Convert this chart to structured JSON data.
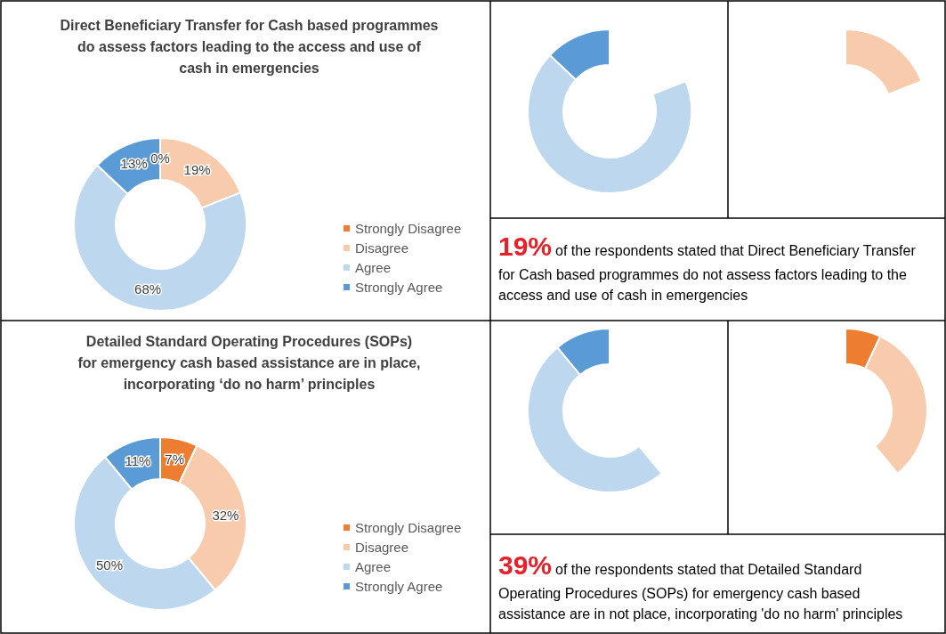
{
  "chart_data": [
    {
      "type": "donut",
      "title": "Direct Beneficiary Transfer for Cash based programmes\ndo assess factors leading to the access and use of\ncash in emergencies",
      "categories": [
        "Strongly Disagree",
        "Disagree",
        "Agree",
        "Strongly Agree"
      ],
      "values": [
        0,
        19,
        68,
        13
      ],
      "colors": [
        "#ed7d31",
        "#f8cbad",
        "#bdd7ee",
        "#5b9bd5"
      ],
      "value_labels": [
        "0%",
        "19%",
        "68%",
        "13%"
      ],
      "legend": "right"
    },
    {
      "type": "other",
      "annotations": [
        "19%",
        "of the respondents stated that Direct Beneficiary Transfer",
        "for Cash based programmes do not assess factors leading to the",
        "access and use of cash in emergencies"
      ]
    },
    {
      "type": "donut",
      "title": "Detailed Standard Operating Procedures (SOPs)\nfor emergency cash based assistance are in place,\nincorporating ‘do no harm’ principles",
      "categories": [
        "Strongly Disagree",
        "Disagree",
        "Agree",
        "Strongly Agree"
      ],
      "values": [
        7,
        32,
        50,
        11
      ],
      "colors": [
        "#ed7d31",
        "#f8cbad",
        "#bdd7ee",
        "#5b9bd5"
      ],
      "value_labels": [
        "7%",
        "32%",
        "50%",
        "11%"
      ],
      "legend": "right"
    },
    {
      "type": "other",
      "annotations": [
        "39%",
        "of the respondents stated that Detailed Standard",
        "Operating Procedures (SOPs) for emergency cash based",
        "assistance are in not place, incorporating 'do no harm' principles"
      ]
    }
  ]
}
